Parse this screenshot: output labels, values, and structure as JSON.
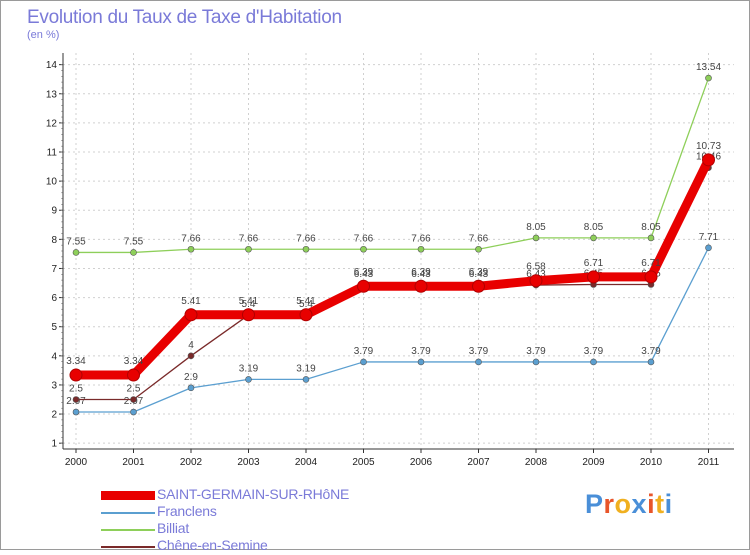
{
  "title": "Evolution du Taux de Taxe d'Habitation",
  "subtitle": "(en %)",
  "brand": "Proxiti",
  "brand_colors": [
    "#4a8fd8",
    "#e8552a",
    "#f0b020",
    "#4a8fd8",
    "#e8552a",
    "#f0b020",
    "#4a8fd8"
  ],
  "chart_data": {
    "type": "line",
    "categories": [
      "2000",
      "2001",
      "2002",
      "2003",
      "2004",
      "2005",
      "2006",
      "2007",
      "2008",
      "2009",
      "2010",
      "2011"
    ],
    "y_ticks": [
      "1",
      "2",
      "3",
      "4",
      "5",
      "6",
      "7",
      "8",
      "9",
      "10",
      "11",
      "12",
      "13",
      "14"
    ],
    "ylim": [
      0.8,
      14.4
    ],
    "series": [
      {
        "name": "Billiat",
        "color": "#8ecf5a",
        "labels": [
          "7.55",
          "7.55",
          "7.66",
          "7.66",
          "7.66",
          "7.66",
          "7.66",
          "7.66",
          "8.05",
          "8.05",
          "8.05",
          "13.54"
        ],
        "values": [
          7.55,
          7.55,
          7.66,
          7.66,
          7.66,
          7.66,
          7.66,
          7.66,
          8.05,
          8.05,
          8.05,
          13.54
        ]
      },
      {
        "name": "Franclens",
        "color": "#5b9fd0",
        "labels": [
          "2.07",
          "2.07",
          "2.9",
          "3.19",
          "3.19",
          "3.79",
          "3.79",
          "3.79",
          "3.79",
          "3.79",
          "3.79",
          "7.71"
        ],
        "values": [
          2.07,
          2.07,
          2.9,
          3.19,
          3.19,
          3.79,
          3.79,
          3.79,
          3.79,
          3.79,
          3.79,
          7.71
        ]
      },
      {
        "name": "Chêne-en-Semine",
        "color": "#7a2a2a",
        "labels": [
          "2.5",
          "2.5",
          "4",
          "5.4",
          "5.4",
          "6.43",
          "6.43",
          "6.43",
          "6.43",
          "6.45",
          "6.45",
          "10.46"
        ],
        "values": [
          2.5,
          2.5,
          4,
          5.4,
          5.4,
          6.43,
          6.43,
          6.43,
          6.43,
          6.45,
          6.45,
          10.46
        ]
      },
      {
        "name": "SAINT-GERMAIN-SUR-RHôNE",
        "color": "#e80000",
        "labels": [
          "3.34",
          "3.34",
          "5.41",
          "5.41",
          "5.41",
          "6.39",
          "6.39",
          "6.39",
          "6.58",
          "6.71",
          "6.71",
          "10.73"
        ],
        "values": [
          3.34,
          3.34,
          5.41,
          5.41,
          5.41,
          6.39,
          6.39,
          6.39,
          6.58,
          6.71,
          6.71,
          10.73
        ]
      }
    ],
    "legend": [
      "SAINT-GERMAIN-SUR-RHôNE",
      "Franclens",
      "Billiat",
      "Chêne-en-Semine"
    ],
    "legend_placement": "bottom-left"
  }
}
